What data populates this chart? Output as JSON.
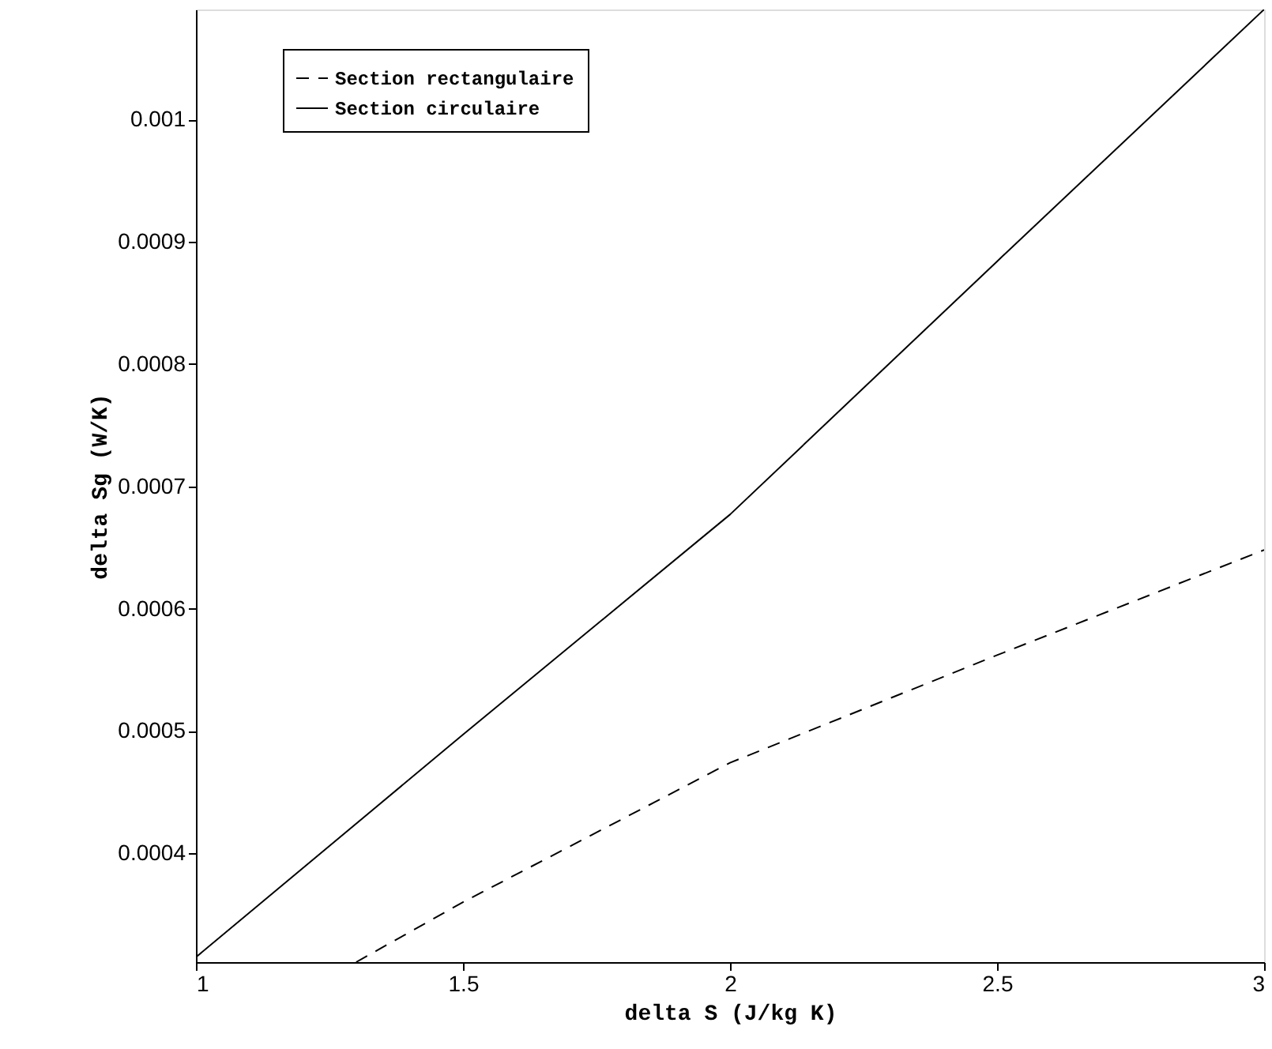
{
  "chart_data": {
    "type": "line",
    "xlabel": "delta S  (J/kg K)",
    "ylabel": "delta Sg  (W/K)",
    "xlim": [
      1,
      3
    ],
    "xticks": [
      1,
      1.5,
      2,
      2.5,
      3
    ],
    "ylim": [
      0.000311,
      0.00109
    ],
    "yticks": [
      0.0004,
      0.0005,
      0.0006,
      0.0007,
      0.0008,
      0.0009,
      0.001
    ],
    "grid": false,
    "legend": "top left",
    "marker": "none",
    "series": [
      {
        "name": "Section rectangulaire",
        "color": "#000000",
        "line_style": "dashed",
        "x": [
          1.3,
          1.5,
          2,
          2.5,
          3
        ],
        "values": [
          0.000311,
          0.00036,
          0.000474,
          0.000562,
          0.000648
        ]
      },
      {
        "name": "Section circulaire",
        "color": "#000000",
        "line_style": "solid",
        "x": [
          1,
          1.5,
          2,
          2.5,
          3
        ],
        "values": [
          0.000315,
          0.000497,
          0.000677,
          0.000884,
          0.00109
        ]
      }
    ]
  }
}
